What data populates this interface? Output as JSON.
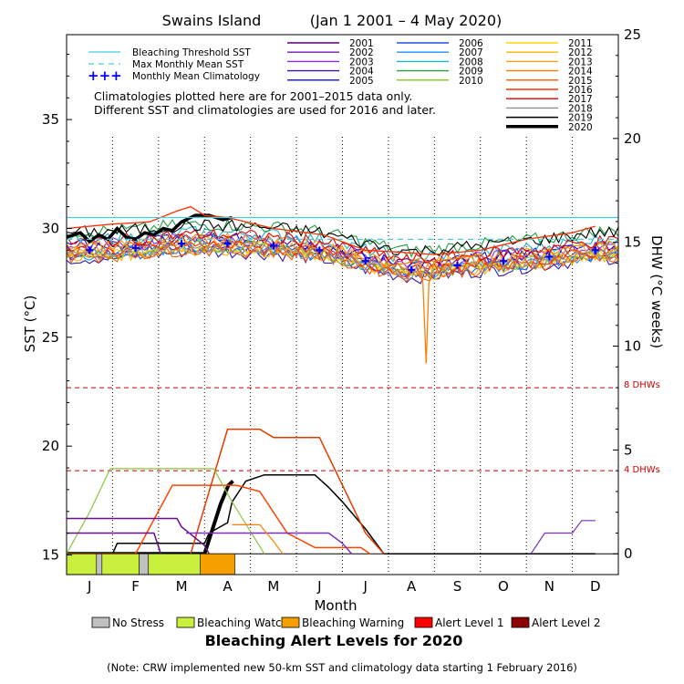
{
  "chart_data": {
    "type": "line",
    "title_left": "Swains Island",
    "title_right": "(Jan 1 2001 – 4 May 2020)",
    "xlabel": "Month",
    "ylabel_left": "SST (°C)",
    "ylabel_right": "DHW (°C weeks)",
    "months": [
      "J",
      "F",
      "M",
      "A",
      "M",
      "J",
      "J",
      "A",
      "S",
      "O",
      "N",
      "D"
    ],
    "sst_ticks": [
      15,
      20,
      25,
      30,
      35
    ],
    "dhw_ticks": [
      0,
      5,
      10,
      15,
      20,
      25
    ],
    "ylim_sst": [
      14.1,
      38.9
    ],
    "ylim_dhw": [
      -1,
      25
    ],
    "bleaching_threshold_sst": 30.5,
    "max_monthly_mean_sst": 29.5,
    "climatology": [
      29.0,
      29.1,
      29.3,
      29.3,
      29.2,
      29.0,
      28.5,
      28.1,
      28.3,
      28.5,
      28.7,
      29.0
    ],
    "dhw_levels": {
      "eight": 8,
      "four": 4
    },
    "dhw_level_labels": {
      "eight": "8 DHWs",
      "four": "4 DHWs"
    },
    "reference_legend": [
      "Bleaching Threshold SST",
      "Max Monthly Mean SST",
      "Monthly Mean Climatology"
    ],
    "year_legend": [
      {
        "year": "2001",
        "color": "#5a007a"
      },
      {
        "year": "2002",
        "color": "#7a1ab0"
      },
      {
        "year": "2003",
        "color": "#8a2be2"
      },
      {
        "year": "2004",
        "color": "#3a1aa8"
      },
      {
        "year": "2005",
        "color": "#1010d0"
      },
      {
        "year": "2006",
        "color": "#1e50e0"
      },
      {
        "year": "2007",
        "color": "#1e90ff"
      },
      {
        "year": "2008",
        "color": "#20b2c8"
      },
      {
        "year": "2009",
        "color": "#20a040"
      },
      {
        "year": "2010",
        "color": "#7cc820"
      },
      {
        "year": "2011",
        "color": "#ffd700"
      },
      {
        "year": "2012",
        "color": "#ffb400"
      },
      {
        "year": "2013",
        "color": "#ff9f1a"
      },
      {
        "year": "2014",
        "color": "#ff7f00"
      },
      {
        "year": "2015",
        "color": "#ff5a00"
      },
      {
        "year": "2016",
        "color": "#ff3000"
      },
      {
        "year": "2017",
        "color": "#e00000"
      },
      {
        "year": "2018",
        "color": "#909090"
      },
      {
        "year": "2019",
        "color": "#000000"
      },
      {
        "year": "2020",
        "color": "#000000"
      }
    ],
    "notes": [
      "Climatologies plotted here are for 2001–2015 data only.",
      "Different SST and climatologies are used for 2016 and later."
    ],
    "dhw_series": [
      {
        "name": "2020",
        "color": "#000000",
        "width": 4,
        "points": [
          [
            0,
            0
          ],
          [
            3.0,
            0
          ],
          [
            3.35,
            2.4
          ],
          [
            3.52,
            3.3
          ],
          [
            3.62,
            3.5
          ]
        ]
      },
      {
        "name": "2019",
        "color": "#000000",
        "width": 1.5,
        "points": [
          [
            0,
            0
          ],
          [
            1.0,
            0
          ],
          [
            1.1,
            0.5
          ],
          [
            3.0,
            0.5
          ],
          [
            3.1,
            1.0
          ],
          [
            3.5,
            1.5
          ],
          [
            3.6,
            2.5
          ],
          [
            3.9,
            3.5
          ],
          [
            4.3,
            3.8
          ],
          [
            5.4,
            3.8
          ],
          [
            5.7,
            3.2
          ],
          [
            6.0,
            2.5
          ],
          [
            6.5,
            1.2
          ],
          [
            6.9,
            0
          ],
          [
            11.5,
            0
          ]
        ]
      },
      {
        "name": "2015",
        "color": "#ff4500",
        "width": 1.5,
        "points": [
          [
            0,
            0
          ],
          [
            1.5,
            0
          ],
          [
            2.3,
            3.3
          ],
          [
            3.7,
            3.3
          ],
          [
            4.2,
            3.0
          ],
          [
            4.8,
            1.0
          ],
          [
            5.4,
            0.3
          ],
          [
            6.4,
            0.3
          ],
          [
            6.6,
            0
          ]
        ]
      },
      {
        "name": "2016",
        "color": "#e03c00",
        "width": 1.5,
        "points": [
          [
            2.7,
            0
          ],
          [
            3.5,
            6.0
          ],
          [
            3.7,
            6.0
          ],
          [
            4.2,
            6.0
          ],
          [
            4.5,
            5.6
          ],
          [
            5.5,
            5.6
          ],
          [
            6.0,
            3.3
          ],
          [
            6.5,
            1.0
          ],
          [
            6.9,
            0
          ]
        ]
      },
      {
        "name": "2010",
        "color": "#8cc63f",
        "width": 1.2,
        "points": [
          [
            0,
            0
          ],
          [
            0.5,
            2.0
          ],
          [
            0.95,
            4.1
          ],
          [
            3.2,
            4.1
          ],
          [
            3.6,
            2.5
          ],
          [
            4.3,
            0
          ]
        ]
      },
      {
        "name": "2001",
        "color": "#6a0d8a",
        "width": 1.5,
        "points": [
          [
            0,
            1.7
          ],
          [
            2.4,
            1.7
          ],
          [
            2.5,
            1.3
          ],
          [
            3.0,
            0.4
          ],
          [
            3.1,
            0
          ]
        ]
      },
      {
        "name": "2002",
        "color": "#6a0d8a",
        "width": 1.5,
        "points": [
          [
            0,
            1.0
          ],
          [
            1.9,
            1.0
          ],
          [
            2.05,
            0
          ]
        ]
      },
      {
        "name": "2005",
        "color": "#7b2fbe",
        "width": 1.5,
        "points": [
          [
            2.6,
            1.0
          ],
          [
            5.7,
            1.0
          ],
          [
            6.0,
            0.5
          ],
          [
            6.2,
            0
          ]
        ]
      },
      {
        "name": "2014",
        "color": "#ff7f00",
        "width": 1.2,
        "points": [
          [
            3.6,
            1.4
          ],
          [
            4.2,
            1.4
          ],
          [
            4.5,
            0.6
          ],
          [
            4.7,
            0
          ]
        ]
      },
      {
        "name": "2009",
        "color": "#7b2fbe",
        "width": 1.2,
        "points": [
          [
            10.1,
            0
          ],
          [
            10.4,
            1.0
          ],
          [
            11.0,
            1.0
          ],
          [
            11.2,
            1.6
          ],
          [
            11.5,
            1.6
          ]
        ]
      }
    ],
    "sst_highlight": [
      {
        "name": "2020",
        "color": "#000000",
        "width": 3.5,
        "points": [
          [
            0,
            29.6
          ],
          [
            0.3,
            29.8
          ],
          [
            0.5,
            29.4
          ],
          [
            0.7,
            29.7
          ],
          [
            0.9,
            29.5
          ],
          [
            1.1,
            30.0
          ],
          [
            1.3,
            29.6
          ],
          [
            1.5,
            29.5
          ],
          [
            1.7,
            29.8
          ],
          [
            1.9,
            29.7
          ],
          [
            2.1,
            30.0
          ],
          [
            2.3,
            29.9
          ],
          [
            2.5,
            30.3
          ],
          [
            2.8,
            30.6
          ],
          [
            3.1,
            30.6
          ],
          [
            3.4,
            30.4
          ],
          [
            3.6,
            30.5
          ]
        ]
      },
      {
        "name": "2016",
        "color": "#ff3000",
        "width": 1.3,
        "points": [
          [
            0,
            30.0
          ],
          [
            1.0,
            30.2
          ],
          [
            1.8,
            30.3
          ],
          [
            2.4,
            30.8
          ],
          [
            2.7,
            31.0
          ],
          [
            3.0,
            30.6
          ],
          [
            3.5,
            30.5
          ],
          [
            4.5,
            30.0
          ],
          [
            5.6,
            29.7
          ],
          [
            6.5,
            29.0
          ],
          [
            7.3,
            28.9
          ],
          [
            8.0,
            28.8
          ],
          [
            9.0,
            29.0
          ],
          [
            10.0,
            29.5
          ],
          [
            11.0,
            29.8
          ],
          [
            11.5,
            30.1
          ]
        ]
      },
      {
        "name": "2015 dip",
        "color": "#ff7f00",
        "width": 1.3,
        "points": [
          [
            7.0,
            28.3
          ],
          [
            7.4,
            28.4
          ],
          [
            7.65,
            28.6
          ],
          [
            7.75,
            27.5
          ],
          [
            7.82,
            23.8
          ],
          [
            7.88,
            27.5
          ],
          [
            8.0,
            28.5
          ],
          [
            8.4,
            28.6
          ],
          [
            9.0,
            28.8
          ]
        ]
      }
    ],
    "alert_strip_2020": [
      {
        "from": 0,
        "to": 0.65,
        "level": "Bleaching Watch"
      },
      {
        "from": 0.65,
        "to": 0.77,
        "level": "No Stress"
      },
      {
        "from": 0.77,
        "to": 1.58,
        "level": "Bleaching Watch"
      },
      {
        "from": 1.58,
        "to": 1.78,
        "level": "No Stress"
      },
      {
        "from": 1.78,
        "to": 2.91,
        "level": "Bleaching Watch"
      },
      {
        "from": 2.91,
        "to": 3.66,
        "level": "Bleaching Warning"
      }
    ],
    "alert_legend": [
      {
        "label": "No Stress",
        "color": "#c0c0c0"
      },
      {
        "label": "Bleaching Watch",
        "color": "#c8f03c"
      },
      {
        "label": "Bleaching Warning",
        "color": "#f5a000"
      },
      {
        "label": "Alert Level 1",
        "color": "#ff0000"
      },
      {
        "label": "Alert Level 2",
        "color": "#8b0000"
      }
    ],
    "alert_title": "Bleaching Alert Levels for 2020",
    "footnote": "(Note: CRW implemented new 50-km SST and climatology data starting 1 February 2016)"
  }
}
